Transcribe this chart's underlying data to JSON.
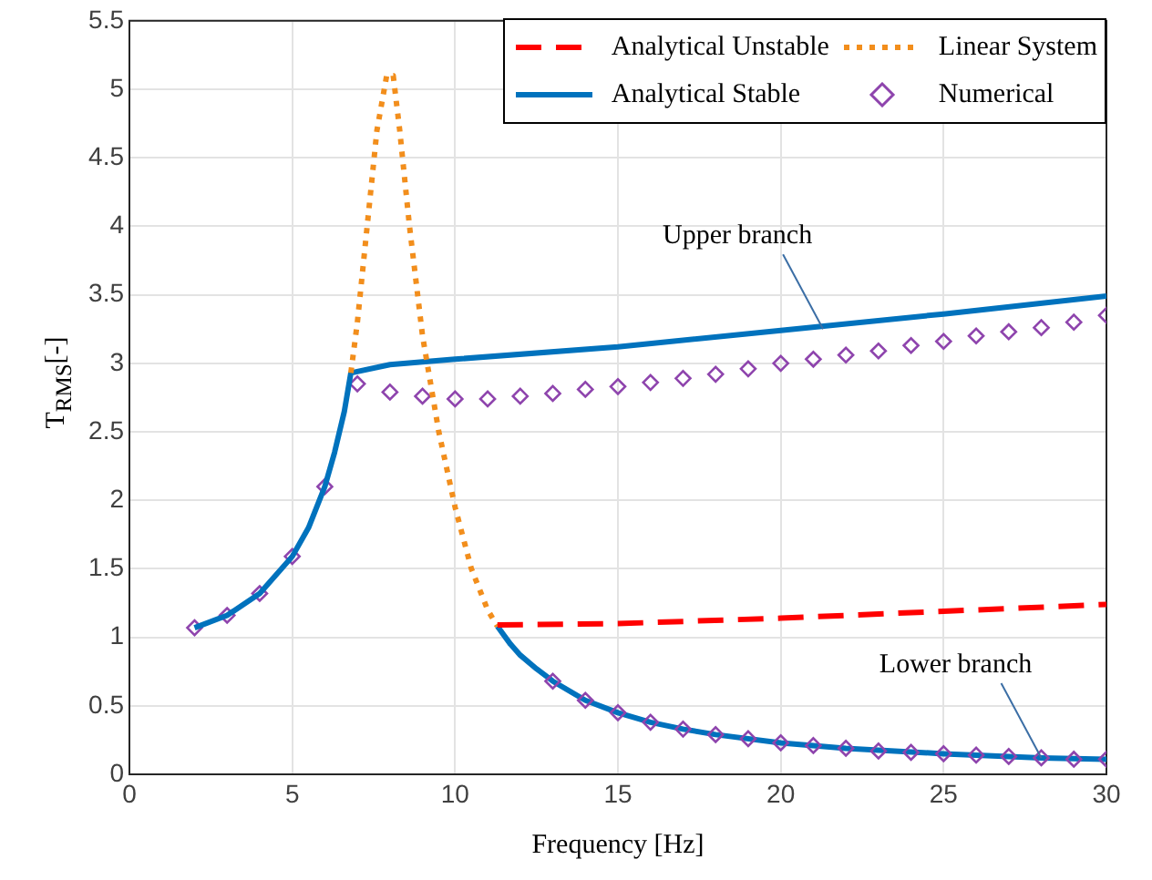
{
  "chart_data": {
    "type": "line",
    "xlabel": "Frequency [Hz]",
    "ylabel": "T$_{RMS}$[-]",
    "xlim": [
      0,
      30
    ],
    "xticks": [
      0,
      5,
      10,
      15,
      20,
      25,
      30
    ],
    "ylim": [
      0,
      5.5
    ],
    "yticks": [
      0,
      0.5,
      1,
      1.5,
      2,
      2.5,
      3,
      3.5,
      4,
      4.5,
      5,
      5.5
    ],
    "grid": true,
    "legend": "top right",
    "series": [
      {
        "name": "Analytical Unstable",
        "line_style": "dashed",
        "marker": "none",
        "color": "#ff0000",
        "x": [
          11.3,
          15,
          20,
          25,
          30
        ],
        "values": [
          1.09,
          1.1,
          1.14,
          1.19,
          1.24
        ]
      },
      {
        "name": "Linear System",
        "line_style": "dotted",
        "marker": "none",
        "color": "#f28e1c",
        "x": [
          6.8,
          7,
          7.3,
          7.6,
          7.9,
          8.1,
          8.3,
          8.6,
          9,
          9.5,
          10,
          10.5,
          11,
          11.3
        ],
        "values": [
          2.93,
          3.3,
          4.0,
          4.7,
          5.1,
          5.1,
          4.7,
          4.0,
          3.2,
          2.5,
          1.95,
          1.5,
          1.2,
          1.08
        ]
      },
      {
        "name": "Analytical Stable",
        "line_style": "solid",
        "marker": "none",
        "color": "#0072bd",
        "x": [
          2,
          3,
          4,
          5,
          5.5,
          6,
          6.3,
          6.6,
          6.8,
          8,
          10,
          15,
          20,
          25,
          30
        ],
        "values": [
          1.07,
          1.16,
          1.32,
          1.59,
          1.8,
          2.1,
          2.35,
          2.65,
          2.93,
          2.99,
          3.03,
          3.12,
          3.24,
          3.36,
          3.49
        ]
      },
      {
        "name": "Numerical",
        "type": "scatter",
        "marker": "diamond",
        "color": "#8e44ad",
        "x": [
          2,
          3,
          4,
          5,
          6,
          7,
          8,
          9,
          10,
          11,
          12,
          13,
          14,
          15,
          16,
          17,
          18,
          19,
          20,
          21,
          22,
          23,
          24,
          25,
          26,
          27,
          28,
          29,
          30,
          13,
          14,
          15,
          16,
          17,
          18,
          19,
          20,
          21,
          22,
          23,
          24,
          25,
          26,
          27,
          28,
          29,
          30
        ],
        "values": [
          1.07,
          1.16,
          1.32,
          1.59,
          2.1,
          2.85,
          2.79,
          2.76,
          2.74,
          2.74,
          2.76,
          2.78,
          2.81,
          2.83,
          2.86,
          2.89,
          2.92,
          2.96,
          3.0,
          3.03,
          3.06,
          3.09,
          3.13,
          3.16,
          3.2,
          3.23,
          3.26,
          3.3,
          3.35,
          0.68,
          0.54,
          0.45,
          0.38,
          0.33,
          0.29,
          0.26,
          0.23,
          0.21,
          0.19,
          0.17,
          0.16,
          0.15,
          0.14,
          0.13,
          0.12,
          0.11,
          0.11
        ]
      },
      {
        "line_style": "solid",
        "marker": "none",
        "color": "#0072bd",
        "x": [
          11.3,
          11.7,
          12,
          12.5,
          13,
          14,
          15,
          16,
          17,
          18,
          20,
          22,
          25,
          28,
          30
        ],
        "values": [
          1.08,
          0.95,
          0.87,
          0.77,
          0.68,
          0.54,
          0.45,
          0.38,
          0.33,
          0.29,
          0.23,
          0.19,
          0.15,
          0.12,
          0.11
        ]
      }
    ],
    "annotations": [
      {
        "text": "Upper branch",
        "x": 21.3,
        "y": 3.25
      },
      {
        "text": "Lower branch",
        "x": 28,
        "y": 0.12
      }
    ]
  }
}
